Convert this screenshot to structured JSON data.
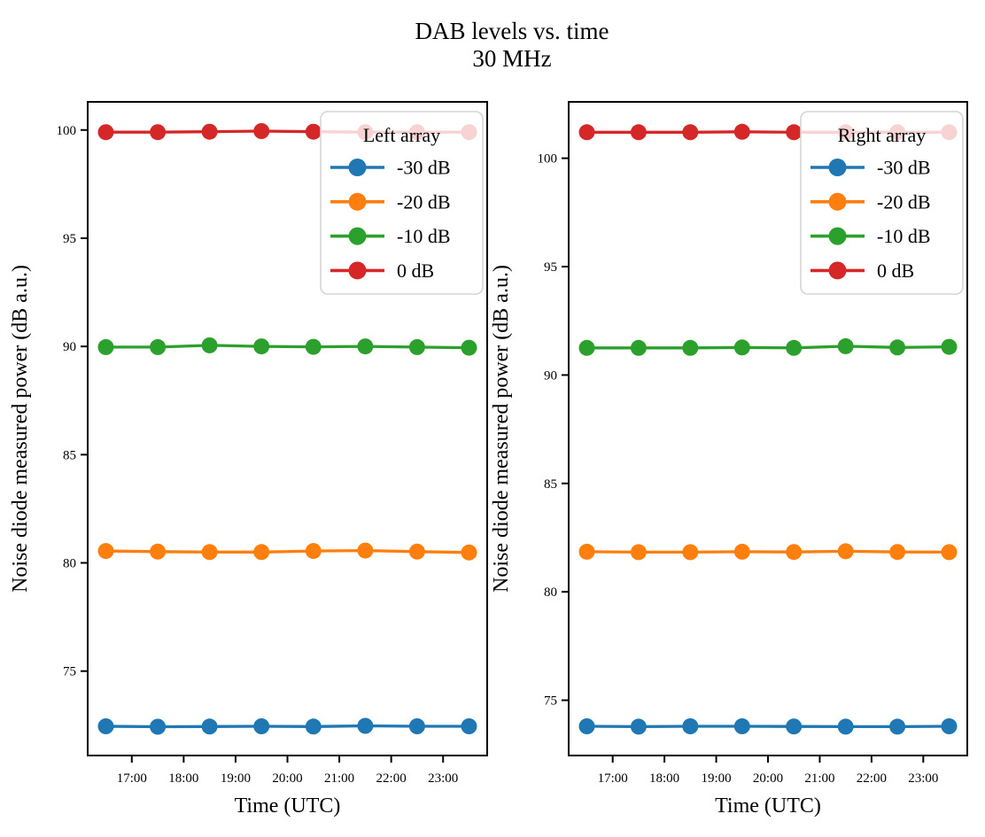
{
  "title": {
    "line1": "DAB levels vs. time",
    "line2": "30 MHz"
  },
  "colors": {
    "series_minus30_dB": "#1f77b4",
    "series_minus20_dB": "#ff7f0e",
    "series_minus10_dB": "#2ca02c",
    "series_0_dB": "#d62728",
    "background": "#ffffff",
    "legend_border": "#d5d5d5",
    "axes": "#000000"
  },
  "chart_data": [
    {
      "type": "line",
      "panel": "left",
      "legend_title": "Left array",
      "legend_position": "upper right",
      "grid": false,
      "xlabel": "Time (UTC)",
      "ylabel": "Noise diode measured power (dB a.u.)",
      "x_tick_labels": [
        "17:00",
        "18:00",
        "19:00",
        "20:00",
        "21:00",
        "22:00",
        "23:00"
      ],
      "x_tick_hours": [
        17,
        18,
        19,
        20,
        21,
        22,
        23
      ],
      "y_ticks": [
        75,
        80,
        85,
        90,
        95,
        100
      ],
      "xlim_hours": [
        16.15,
        23.85
      ],
      "ylim": [
        71.1,
        101.3
      ],
      "x_hours": [
        16.5,
        17.5,
        18.5,
        19.5,
        20.5,
        21.5,
        22.5,
        23.5
      ],
      "series": [
        {
          "name": "-30 dB",
          "color": "#1f77b4",
          "values": [
            72.45,
            72.43,
            72.44,
            72.45,
            72.44,
            72.47,
            72.45,
            72.45
          ]
        },
        {
          "name": "-20 dB",
          "color": "#ff7f0e",
          "values": [
            80.55,
            80.52,
            80.5,
            80.5,
            80.55,
            80.57,
            80.52,
            80.48
          ]
        },
        {
          "name": "-10 dB",
          "color": "#2ca02c",
          "values": [
            89.97,
            89.97,
            90.05,
            90.0,
            89.98,
            90.0,
            89.97,
            89.94
          ]
        },
        {
          "name": "0 dB",
          "color": "#d62728",
          "values": [
            99.9,
            99.9,
            99.92,
            99.95,
            99.92,
            99.9,
            99.9,
            99.9
          ]
        }
      ]
    },
    {
      "type": "line",
      "panel": "right",
      "legend_title": "Right array",
      "legend_position": "upper right",
      "grid": false,
      "xlabel": "Time (UTC)",
      "ylabel": "Noise diode measured power (dB a.u.)",
      "x_tick_labels": [
        "17:00",
        "18:00",
        "19:00",
        "20:00",
        "21:00",
        "22:00",
        "23:00"
      ],
      "x_tick_hours": [
        17,
        18,
        19,
        20,
        21,
        22,
        23
      ],
      "y_ticks": [
        75,
        80,
        85,
        90,
        95,
        100
      ],
      "xlim_hours": [
        16.15,
        23.85
      ],
      "ylim": [
        72.45,
        102.6
      ],
      "x_hours": [
        16.5,
        17.5,
        18.5,
        19.5,
        20.5,
        21.5,
        22.5,
        23.5
      ],
      "series": [
        {
          "name": "-30 dB",
          "color": "#1f77b4",
          "values": [
            73.8,
            73.78,
            73.8,
            73.8,
            73.79,
            73.78,
            73.78,
            73.8
          ]
        },
        {
          "name": "-20 dB",
          "color": "#ff7f0e",
          "values": [
            81.85,
            81.83,
            81.83,
            81.85,
            81.84,
            81.87,
            81.84,
            81.83
          ]
        },
        {
          "name": "-10 dB",
          "color": "#2ca02c",
          "values": [
            91.25,
            91.25,
            91.25,
            91.27,
            91.25,
            91.33,
            91.27,
            91.3
          ]
        },
        {
          "name": "0 dB",
          "color": "#d62728",
          "values": [
            101.2,
            101.2,
            101.2,
            101.22,
            101.2,
            101.2,
            101.2,
            101.2
          ]
        }
      ]
    }
  ]
}
